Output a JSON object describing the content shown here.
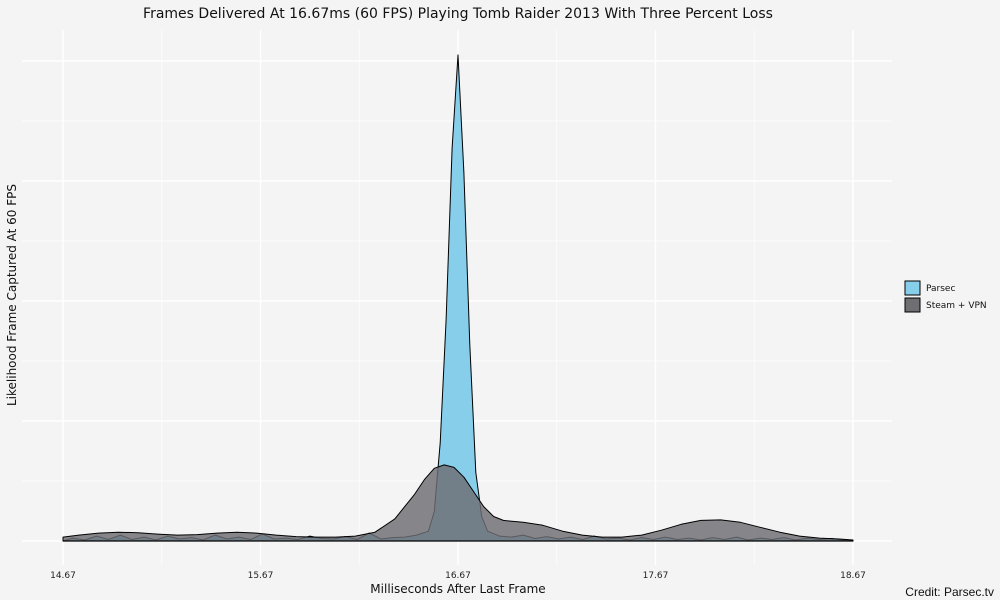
{
  "chart_data": {
    "type": "area",
    "title": "Frames Delivered At 16.67ms (60 FPS) Playing Tomb Raider 2013 With Three Percent Loss",
    "xlabel": "Milliseconds After Last Frame",
    "ylabel": "Likelihood Frame Captured At 60 FPS",
    "x_ticks": [
      "14.67",
      "15.67",
      "16.67",
      "17.67",
      "18.67"
    ],
    "x_tick_values": [
      14.67,
      15.67,
      16.67,
      17.67,
      18.67
    ],
    "xlim": [
      14.67,
      18.67
    ],
    "ylim": [
      0,
      1.0
    ],
    "grid": true,
    "legend_position": "right",
    "series": [
      {
        "name": "Parsec",
        "color": "#87ceeb",
        "x": [
          14.67,
          14.72,
          14.78,
          14.84,
          14.9,
          14.96,
          15.02,
          15.08,
          15.14,
          15.2,
          15.26,
          15.32,
          15.38,
          15.44,
          15.5,
          15.56,
          15.62,
          15.68,
          15.74,
          15.8,
          15.86,
          15.92,
          15.98,
          16.04,
          16.1,
          16.16,
          16.22,
          16.28,
          16.34,
          16.4,
          16.46,
          16.52,
          16.55,
          16.58,
          16.61,
          16.64,
          16.67,
          16.7,
          16.73,
          16.76,
          16.79,
          16.82,
          16.88,
          16.94,
          17.0,
          17.06,
          17.12,
          17.18,
          17.24,
          17.3,
          17.36,
          17.42,
          17.48,
          17.54,
          17.6,
          17.66,
          17.72,
          17.78,
          17.84,
          17.9,
          17.96,
          18.02,
          18.08,
          18.14,
          18.2,
          18.26,
          18.32,
          18.38,
          18.44,
          18.5,
          18.56,
          18.62,
          18.67
        ],
        "values": [
          0.0,
          0.006,
          0.002,
          0.01,
          0.003,
          0.012,
          0.003,
          0.008,
          0.002,
          0.01,
          0.004,
          0.007,
          0.002,
          0.012,
          0.004,
          0.008,
          0.003,
          0.014,
          0.004,
          0.006,
          0.003,
          0.01,
          0.005,
          0.004,
          0.009,
          0.003,
          0.016,
          0.004,
          0.007,
          0.008,
          0.012,
          0.02,
          0.06,
          0.2,
          0.45,
          0.8,
          0.99,
          0.75,
          0.4,
          0.14,
          0.05,
          0.02,
          0.01,
          0.008,
          0.012,
          0.005,
          0.009,
          0.004,
          0.008,
          0.003,
          0.01,
          0.004,
          0.006,
          0.002,
          0.007,
          0.003,
          0.008,
          0.003,
          0.006,
          0.002,
          0.007,
          0.003,
          0.008,
          0.002,
          0.006,
          0.003,
          0.007,
          0.002,
          0.006,
          0.003,
          0.005,
          0.002,
          0.0
        ]
      },
      {
        "name": "Steam + VPN",
        "color": "#6e6e73",
        "x": [
          14.67,
          14.75,
          14.85,
          14.95,
          15.05,
          15.15,
          15.25,
          15.35,
          15.45,
          15.55,
          15.65,
          15.75,
          15.85,
          15.95,
          16.05,
          16.15,
          16.25,
          16.35,
          16.45,
          16.5,
          16.55,
          16.6,
          16.65,
          16.7,
          16.75,
          16.8,
          16.85,
          16.9,
          16.95,
          17.0,
          17.1,
          17.2,
          17.3,
          17.4,
          17.5,
          17.6,
          17.7,
          17.8,
          17.9,
          18.0,
          18.1,
          18.2,
          18.3,
          18.4,
          18.5,
          18.6,
          18.67
        ],
        "values": [
          0.008,
          0.012,
          0.016,
          0.018,
          0.017,
          0.014,
          0.012,
          0.013,
          0.016,
          0.018,
          0.016,
          0.012,
          0.009,
          0.008,
          0.008,
          0.01,
          0.018,
          0.045,
          0.095,
          0.125,
          0.148,
          0.155,
          0.15,
          0.13,
          0.1,
          0.07,
          0.05,
          0.042,
          0.04,
          0.038,
          0.032,
          0.02,
          0.012,
          0.008,
          0.008,
          0.012,
          0.022,
          0.034,
          0.042,
          0.043,
          0.038,
          0.028,
          0.018,
          0.01,
          0.006,
          0.004,
          0.002
        ]
      }
    ],
    "credit": "Credit: Parsec.tv"
  }
}
